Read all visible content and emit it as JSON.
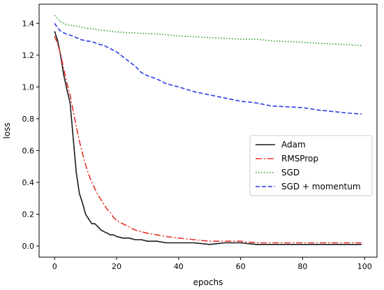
{
  "chart_data": {
    "type": "line",
    "title": "",
    "xlabel": "epochs",
    "ylabel": "loss",
    "xlim": [
      -5,
      104
    ],
    "ylim": [
      -0.07,
      1.52
    ],
    "xticks": [
      "0",
      "20",
      "40",
      "60",
      "80",
      "100"
    ],
    "yticks": [
      "0.0",
      "0.2",
      "0.4",
      "0.6",
      "0.8",
      "1.0",
      "1.2",
      "1.4"
    ],
    "grid": false,
    "legend": "center-right",
    "series": [
      {
        "name": "Adam",
        "color": "#1a1a1a",
        "dash": "solid",
        "x": [
          0,
          1,
          2,
          3,
          4,
          5,
          6,
          7,
          8,
          9,
          10,
          11,
          12,
          13,
          14,
          15,
          16,
          17,
          18,
          19,
          20,
          22,
          24,
          26,
          28,
          30,
          33,
          36,
          40,
          45,
          50,
          55,
          60,
          65,
          70,
          75,
          80,
          85,
          90,
          95,
          99
        ],
        "y": [
          1.35,
          1.29,
          1.19,
          1.07,
          0.98,
          0.9,
          0.68,
          0.46,
          0.33,
          0.27,
          0.2,
          0.17,
          0.14,
          0.14,
          0.12,
          0.1,
          0.09,
          0.08,
          0.07,
          0.07,
          0.06,
          0.05,
          0.05,
          0.04,
          0.04,
          0.03,
          0.03,
          0.02,
          0.02,
          0.02,
          0.01,
          0.02,
          0.02,
          0.01,
          0.01,
          0.01,
          0.01,
          0.01,
          0.01,
          0.01,
          0.01
        ]
      },
      {
        "name": "RMSProp",
        "color": "#e8322f",
        "dash": "dashdot",
        "x": [
          0,
          1,
          2,
          3,
          4,
          5,
          6,
          7,
          8,
          9,
          10,
          11,
          12,
          13,
          14,
          15,
          16,
          17,
          18,
          19,
          20,
          22,
          24,
          26,
          28,
          30,
          33,
          36,
          40,
          45,
          50,
          55,
          60,
          65,
          70,
          75,
          80,
          85,
          90,
          95,
          99
        ],
        "y": [
          1.32,
          1.27,
          1.2,
          1.11,
          1.02,
          0.95,
          0.85,
          0.75,
          0.66,
          0.58,
          0.51,
          0.45,
          0.4,
          0.36,
          0.32,
          0.29,
          0.26,
          0.23,
          0.21,
          0.18,
          0.16,
          0.14,
          0.12,
          0.1,
          0.09,
          0.08,
          0.07,
          0.06,
          0.05,
          0.04,
          0.03,
          0.03,
          0.03,
          0.02,
          0.02,
          0.02,
          0.02,
          0.02,
          0.02,
          0.02,
          0.02
        ]
      },
      {
        "name": "SGD",
        "color": "#2ca02c",
        "dash": "dotted",
        "x": [
          0,
          2,
          4,
          6,
          8,
          10,
          12,
          14,
          16,
          18,
          20,
          25,
          30,
          35,
          40,
          45,
          50,
          55,
          60,
          65,
          70,
          75,
          80,
          85,
          90,
          95,
          99
        ],
        "y": [
          1.45,
          1.41,
          1.39,
          1.385,
          1.38,
          1.37,
          1.365,
          1.36,
          1.355,
          1.35,
          1.345,
          1.34,
          1.335,
          1.33,
          1.32,
          1.315,
          1.31,
          1.305,
          1.3,
          1.3,
          1.29,
          1.285,
          1.28,
          1.275,
          1.27,
          1.265,
          1.26
        ]
      },
      {
        "name": "SGD + momentum",
        "color": "#2b3ae8",
        "dash": "dashed",
        "x": [
          0,
          1,
          2,
          4,
          6,
          8,
          10,
          12,
          14,
          16,
          18,
          20,
          22,
          24,
          26,
          28,
          30,
          33,
          36,
          40,
          45,
          50,
          55,
          60,
          65,
          70,
          75,
          80,
          85,
          90,
          95,
          99
        ],
        "y": [
          1.4,
          1.37,
          1.35,
          1.33,
          1.32,
          1.3,
          1.29,
          1.285,
          1.27,
          1.26,
          1.24,
          1.22,
          1.19,
          1.16,
          1.13,
          1.09,
          1.07,
          1.05,
          1.02,
          1.0,
          0.97,
          0.95,
          0.93,
          0.91,
          0.9,
          0.88,
          0.875,
          0.87,
          0.855,
          0.845,
          0.835,
          0.83
        ]
      }
    ]
  }
}
